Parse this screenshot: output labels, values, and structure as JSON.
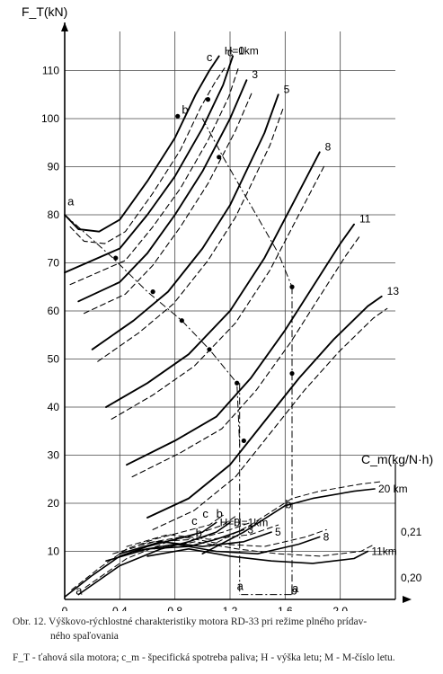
{
  "chart_data": {
    "type": "line",
    "y_axis_label": "F_T(kN)",
    "y2_axis_label": "C_m(kg/N·h)",
    "x_axis_label": "M",
    "x_ticks": [
      "0",
      "0,4",
      "0,8",
      "1,2",
      "1,6",
      "2,0"
    ],
    "y_ticks": [
      "10",
      "20",
      "30",
      "40",
      "50",
      "60",
      "70",
      "80",
      "90",
      "100",
      "110"
    ],
    "y2_ticks": [
      "0,20",
      "0,21"
    ],
    "xlim": [
      0,
      2.4
    ],
    "ylim": [
      0,
      120
    ],
    "thrust_series": [
      {
        "name": "H=0",
        "points": [
          [
            0.0,
            80
          ],
          [
            0.1,
            77
          ],
          [
            0.25,
            76.5
          ],
          [
            0.4,
            79
          ],
          [
            0.6,
            87
          ],
          [
            0.8,
            96
          ],
          [
            0.95,
            105
          ],
          [
            1.05,
            110
          ],
          [
            1.12,
            113
          ]
        ]
      },
      {
        "name": "1km",
        "points": [
          [
            0.0,
            68
          ],
          [
            0.4,
            73
          ],
          [
            0.6,
            80
          ],
          [
            0.8,
            88
          ],
          [
            1.0,
            98
          ],
          [
            1.15,
            107
          ],
          [
            1.22,
            113
          ]
        ]
      },
      {
        "name": "3",
        "points": [
          [
            0.1,
            62
          ],
          [
            0.4,
            66
          ],
          [
            0.6,
            72
          ],
          [
            0.8,
            80
          ],
          [
            1.0,
            89
          ],
          [
            1.2,
            100
          ],
          [
            1.32,
            108
          ]
        ]
      },
      {
        "name": "5",
        "points": [
          [
            0.2,
            52
          ],
          [
            0.5,
            58
          ],
          [
            0.75,
            64
          ],
          [
            1.0,
            73
          ],
          [
            1.2,
            82
          ],
          [
            1.45,
            97
          ],
          [
            1.55,
            105
          ]
        ]
      },
      {
        "name": "8",
        "points": [
          [
            0.3,
            40
          ],
          [
            0.6,
            45
          ],
          [
            0.9,
            51
          ],
          [
            1.2,
            60
          ],
          [
            1.45,
            71
          ],
          [
            1.65,
            82
          ],
          [
            1.85,
            93
          ]
        ]
      },
      {
        "name": "11",
        "points": [
          [
            0.45,
            28
          ],
          [
            0.8,
            33
          ],
          [
            1.1,
            38
          ],
          [
            1.35,
            46
          ],
          [
            1.6,
            56
          ],
          [
            1.8,
            65
          ],
          [
            2.0,
            74
          ],
          [
            2.1,
            78
          ]
        ]
      },
      {
        "name": "13",
        "points": [
          [
            0.6,
            17
          ],
          [
            0.9,
            21
          ],
          [
            1.2,
            28
          ],
          [
            1.45,
            37
          ],
          [
            1.7,
            46
          ],
          [
            1.95,
            54
          ],
          [
            2.2,
            61
          ],
          [
            2.3,
            63
          ]
        ]
      }
    ],
    "cm_series": [
      {
        "name": "H=0",
        "points": [
          [
            0.0,
            0.5
          ],
          [
            0.2,
            5
          ],
          [
            0.4,
            9
          ],
          [
            0.6,
            11
          ],
          [
            0.8,
            12.5
          ],
          [
            1.0,
            14
          ],
          [
            1.1,
            16
          ]
        ]
      },
      {
        "name": "H=1km",
        "points": [
          [
            0.1,
            1
          ],
          [
            0.4,
            7
          ],
          [
            0.7,
            10.5
          ],
          [
            0.9,
            12
          ],
          [
            1.1,
            14
          ],
          [
            1.2,
            16
          ]
        ]
      },
      {
        "name": "3",
        "points": [
          [
            0.3,
            8
          ],
          [
            0.6,
            10.5
          ],
          [
            0.9,
            11
          ],
          [
            1.1,
            12.5
          ],
          [
            1.3,
            14.5
          ]
        ]
      },
      {
        "name": "5",
        "points": [
          [
            0.4,
            9.5
          ],
          [
            0.7,
            12
          ],
          [
            1.0,
            11
          ],
          [
            1.3,
            12
          ],
          [
            1.5,
            14
          ]
        ]
      },
      {
        "name": "8",
        "points": [
          [
            0.5,
            10
          ],
          [
            0.8,
            11.5
          ],
          [
            1.1,
            10
          ],
          [
            1.4,
            9.5
          ],
          [
            1.7,
            11.5
          ],
          [
            1.85,
            13
          ]
        ]
      },
      {
        "name": "11km",
        "points": [
          [
            0.6,
            9
          ],
          [
            0.9,
            10.5
          ],
          [
            1.2,
            9
          ],
          [
            1.5,
            8
          ],
          [
            1.8,
            7.5
          ],
          [
            2.1,
            8.5
          ],
          [
            2.2,
            10
          ]
        ]
      },
      {
        "name": "20 km",
        "points": [
          [
            1.0,
            9.5
          ],
          [
            1.3,
            14
          ],
          [
            1.6,
            19.5
          ],
          [
            1.8,
            21
          ],
          [
            2.1,
            22.5
          ],
          [
            2.25,
            23
          ]
        ]
      }
    ],
    "point_labels": [
      "a",
      "b",
      "c",
      "c",
      "a",
      "b",
      "c",
      "c",
      "b",
      "b",
      "a",
      "a",
      "b"
    ],
    "title": "",
    "annotations": []
  },
  "caption": {
    "line1": "Obr. 12. Výškovo-rýchlostné charakteristiky motora RD-33 pri režime plného prídav-",
    "line2": "ného spaľovania",
    "line3": "F_T - ťahová sila motora; c_m - špecifická spotreba paliva; H - výška letu; M - M-číslo letu."
  }
}
